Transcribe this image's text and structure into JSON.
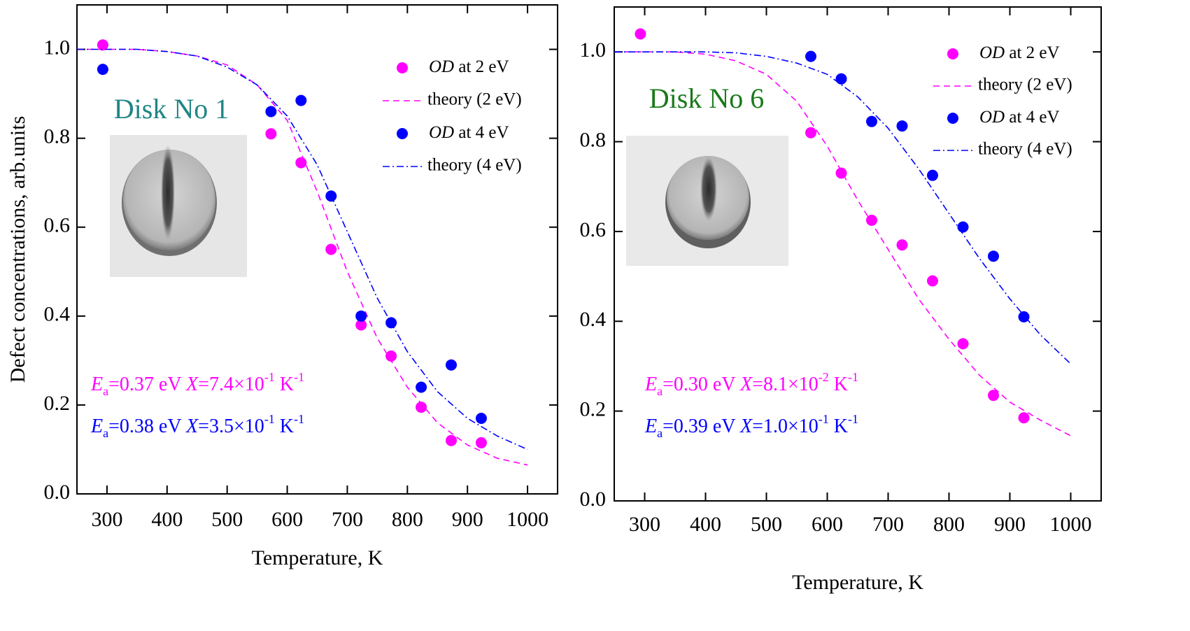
{
  "chart_data": [
    {
      "type": "scatter",
      "xlabel": "Temperature, K",
      "ylabel": "Defect concentrations, arb.units",
      "xlim": [
        250,
        1050
      ],
      "ylim": [
        0,
        1.1
      ],
      "xticks": [
        300,
        400,
        500,
        600,
        700,
        800,
        900,
        1000
      ],
      "yticks": [
        {
          "value": 0,
          "label": "0.0"
        },
        0.2,
        0.4,
        0.6,
        0.8,
        {
          "value": 1,
          "label": "1.0"
        }
      ],
      "disk_label": {
        "text": "Disk No 1",
        "color": "#1f8585"
      },
      "equations": [
        {
          "color": "#ff00ff",
          "parts": [
            "E",
            "a",
            "=0.37 eV   ",
            "X",
            "=7.4×10",
            "-1",
            " K",
            "-1"
          ]
        },
        {
          "color": "#0000ff",
          "parts": [
            "E",
            "a",
            "=0.38 eV   ",
            "X",
            "=3.5×10",
            "-1",
            " K",
            "-1"
          ]
        }
      ],
      "series": [
        {
          "name": "OD at 2 eV",
          "type": "scatter",
          "color": "#ff00ff",
          "x": [
            293,
            573,
            623,
            673,
            723,
            773,
            823,
            873,
            923
          ],
          "values": [
            1.01,
            0.81,
            0.745,
            0.55,
            0.38,
            0.31,
            0.195,
            0.12,
            0.115
          ]
        },
        {
          "name": "theory (2 eV)",
          "type": "line",
          "dash": "dashed",
          "color": "#ff00ff",
          "x": [
            250,
            300,
            350,
            400,
            450,
            500,
            550,
            600,
            650,
            700,
            750,
            800,
            850,
            900,
            950,
            1000
          ],
          "values": [
            1.0,
            1.0,
            1.0,
            0.995,
            0.985,
            0.965,
            0.92,
            0.84,
            0.68,
            0.5,
            0.35,
            0.24,
            0.16,
            0.11,
            0.08,
            0.065
          ]
        },
        {
          "name": "OD at 4 eV",
          "type": "scatter",
          "color": "#0000ff",
          "x": [
            293,
            573,
            623,
            673,
            723,
            773,
            823,
            873,
            923
          ],
          "values": [
            0.955,
            0.86,
            0.885,
            0.67,
            0.4,
            0.385,
            0.24,
            0.29,
            0.17
          ]
        },
        {
          "name": "theory (4 eV)",
          "type": "line",
          "dash": "dashdot",
          "color": "#0000ff",
          "x": [
            250,
            300,
            350,
            400,
            450,
            500,
            550,
            600,
            650,
            700,
            750,
            800,
            850,
            900,
            950,
            1000
          ],
          "values": [
            1.0,
            1.0,
            1.0,
            0.995,
            0.985,
            0.96,
            0.92,
            0.85,
            0.74,
            0.59,
            0.44,
            0.32,
            0.23,
            0.17,
            0.13,
            0.1
          ]
        }
      ]
    },
    {
      "type": "scatter",
      "xlabel": "Temperature, K",
      "xlim": [
        250,
        1050
      ],
      "ylim": [
        0,
        1.1
      ],
      "xticks": [
        300,
        400,
        500,
        600,
        700,
        800,
        900,
        1000
      ],
      "yticks": [
        {
          "value": 0,
          "label": "0.0"
        },
        0.2,
        0.4,
        0.6,
        0.8,
        {
          "value": 1,
          "label": "1.0"
        }
      ],
      "disk_label": {
        "text": "Disk No 6",
        "color": "#1a7a1a"
      },
      "equations": [
        {
          "color": "#ff00ff",
          "parts": [
            "E",
            "a",
            "=0.30 eV   ",
            "X",
            "=8.1×10",
            "-2",
            " K",
            "-1"
          ]
        },
        {
          "color": "#0000ff",
          "parts": [
            "E",
            "a",
            "=0.39 eV   ",
            "X",
            "=1.0×10",
            "-1",
            " K",
            "-1"
          ]
        }
      ],
      "series": [
        {
          "name": "OD at 2 eV",
          "type": "scatter",
          "color": "#ff00ff",
          "x": [
            293,
            573,
            623,
            673,
            723,
            773,
            823,
            873,
            923
          ],
          "values": [
            1.04,
            0.82,
            0.73,
            0.625,
            0.57,
            0.49,
            0.35,
            0.235,
            0.185
          ]
        },
        {
          "name": "theory (2 eV)",
          "type": "line",
          "dash": "dashed",
          "color": "#ff00ff",
          "x": [
            250,
            300,
            350,
            400,
            450,
            500,
            550,
            600,
            650,
            700,
            750,
            800,
            850,
            900,
            950,
            1000
          ],
          "values": [
            1.0,
            1.0,
            1.0,
            0.995,
            0.98,
            0.95,
            0.89,
            0.79,
            0.67,
            0.56,
            0.45,
            0.36,
            0.28,
            0.22,
            0.18,
            0.145
          ]
        },
        {
          "name": "OD at 4 eV",
          "type": "scatter",
          "color": "#0000ff",
          "x": [
            573,
            623,
            673,
            723,
            773,
            823,
            873,
            923
          ],
          "values": [
            0.99,
            0.94,
            0.845,
            0.835,
            0.725,
            0.61,
            0.545,
            0.41
          ]
        },
        {
          "name": "theory (4 eV)",
          "type": "line",
          "dash": "dashdot",
          "color": "#0000ff",
          "x": [
            250,
            300,
            350,
            400,
            450,
            500,
            550,
            600,
            650,
            700,
            750,
            800,
            850,
            900,
            950,
            1000
          ],
          "values": [
            1.0,
            1.0,
            1.0,
            1.0,
            0.998,
            0.99,
            0.975,
            0.95,
            0.9,
            0.83,
            0.74,
            0.64,
            0.54,
            0.45,
            0.37,
            0.305
          ]
        }
      ]
    }
  ]
}
